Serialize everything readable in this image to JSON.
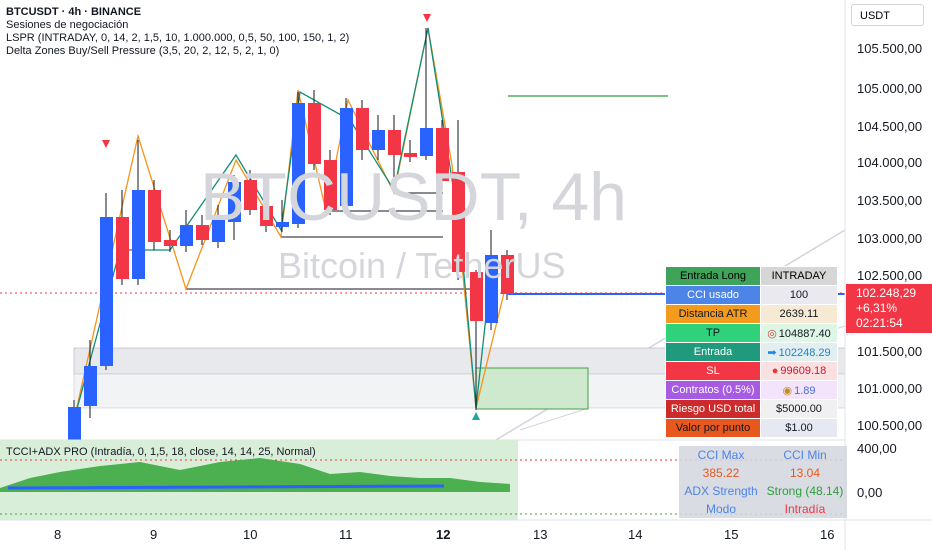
{
  "header": {
    "symbol_line": "BTCUSDT · 4h · BINANCE",
    "indicators": [
      "Sesiones de negociación",
      "LSPR (INTRADAY, 0, 14, 2, 1,5, 10, 1.000.000, 0,5, 50, 100, 150, 1, 2)",
      "Delta Zones Buy/Sell Pressure (3,5, 20, 2, 12, 5, 2, 1, 0)"
    ]
  },
  "currency_button": "USDT",
  "watermark": {
    "symbol": "BTCUSDT, 4h",
    "description": "Bitcoin / TetherUS"
  },
  "price_axis": [
    "105.500,00",
    "105.000,00",
    "104.500,00",
    "104.000,00",
    "103.500,00",
    "103.000,00",
    "102.500,00",
    "101.500,00",
    "101.000,00",
    "100.500,00"
  ],
  "current_price": {
    "price": "102.248,29",
    "change": "+6,31%",
    "countdown": "02:21:54"
  },
  "time_axis": [
    "8",
    "9",
    "10",
    "11",
    "12",
    "13",
    "14",
    "15",
    "16"
  ],
  "info_table": {
    "rows": [
      {
        "key": "Entrada Long",
        "value": "INTRADAY",
        "key_bg": "#3fa35a",
        "val_bg": "#d6d6d6",
        "key_color": "#000000",
        "val_color": "#000000"
      },
      {
        "key": "CCI usado",
        "value": "100",
        "key_bg": "#4c84e8",
        "val_bg": "#e9e9ef",
        "key_color": "#ffffff",
        "val_color": "#131722"
      },
      {
        "key": "Distancia ATR",
        "value": "2639.11",
        "key_bg": "#f49a1f",
        "val_bg": "#f6ead4",
        "key_color": "#131722",
        "val_color": "#131722"
      },
      {
        "key": "TP",
        "value": "104887.40",
        "icon": "target-icon",
        "key_bg": "#2fd27b",
        "val_bg": "#ddf6e6",
        "key_color": "#131722",
        "val_color": "#131722"
      },
      {
        "key": "Entrada",
        "value": "102248.29",
        "icon": "arrow-right-icon",
        "key_bg": "#1f9a7c",
        "val_bg": "#e1eff0",
        "key_color": "#ffffff",
        "val_color": "#2a7fc0"
      },
      {
        "key": "SL",
        "value": "99609.18",
        "icon": "red-circle-icon",
        "key_bg": "#f23645",
        "val_bg": "#fbe0e2",
        "key_color": "#ffffff",
        "val_color": "#d0142a"
      },
      {
        "key": "Contratos (0.5%)",
        "value": "1.89",
        "icon": "money-bag-icon",
        "key_bg": "#a75be3",
        "val_bg": "#f3e4fb",
        "key_color": "#ffffff",
        "val_color": "#4a6fd3"
      },
      {
        "key": "Riesgo USD total",
        "value": "$5000.00",
        "key_bg": "#cc2b2b",
        "val_bg": "#f0f0f0",
        "key_color": "#ffffff",
        "val_color": "#131722"
      },
      {
        "key": "Valor por punto",
        "value": "$1.00",
        "key_bg": "#e6581e",
        "val_bg": "#e6e8f2",
        "key_color": "#131722",
        "val_color": "#131722"
      }
    ]
  },
  "indicator_pane": {
    "title": "TCCI+ADX PRO (Intradía, 0, 1,5, 18, close, 14, 14, 25, Normal)",
    "axis": [
      "400,00",
      "0,00"
    ],
    "table": {
      "cci_max_label": "CCI Max",
      "cci_min_label": "CCI Min",
      "cci_max": "385.22",
      "cci_min": "13.04",
      "adx_label": "ADX Strength",
      "adx_value": "Strong (48.14)",
      "mode_label": "Modo",
      "mode_value": "Intradía"
    }
  },
  "colors": {
    "bull": "#2962ff",
    "bear": "#f23645",
    "current_price": "#f23645",
    "zigzag_orange": "#f7931a",
    "zigzag_teal": "#138c7a"
  }
}
